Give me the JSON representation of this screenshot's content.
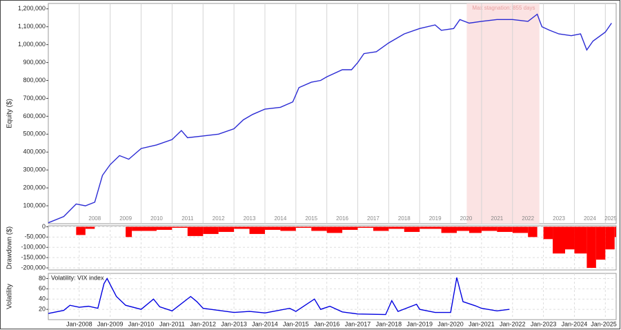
{
  "chart_data": [
    {
      "type": "line",
      "y_label": "Equity ($)",
      "color": "#2a2ad4",
      "grid": true,
      "xlim": [
        2007,
        2025.35
      ],
      "ylim": [
        0,
        1230000
      ],
      "xticks": [
        {
          "value": 2008,
          "label": "2008"
        },
        {
          "value": 2009,
          "label": "2009"
        },
        {
          "value": 2010,
          "label": "2010"
        },
        {
          "value": 2011,
          "label": "2011"
        },
        {
          "value": 2012,
          "label": "2012"
        },
        {
          "value": 2013,
          "label": "2013"
        },
        {
          "value": 2014,
          "label": "2014"
        },
        {
          "value": 2015,
          "label": "2015"
        },
        {
          "value": 2016,
          "label": "2016"
        },
        {
          "value": 2017,
          "label": "2017"
        },
        {
          "value": 2018,
          "label": "2018"
        },
        {
          "value": 2019,
          "label": "2019"
        },
        {
          "value": 2020,
          "label": "2020"
        },
        {
          "value": 2021,
          "label": "2021"
        },
        {
          "value": 2022,
          "label": "2022"
        },
        {
          "value": 2023,
          "label": "2023"
        },
        {
          "value": 2024,
          "label": "2024"
        },
        {
          "value": 2025,
          "label": "2025"
        }
      ],
      "yticks": [
        {
          "value": 100000,
          "label": "100,000"
        },
        {
          "value": 200000,
          "label": "200,000"
        },
        {
          "value": 300000,
          "label": "300,000"
        },
        {
          "value": 400000,
          "label": "400,000"
        },
        {
          "value": 500000,
          "label": "500,000"
        },
        {
          "value": 600000,
          "label": "600,000"
        },
        {
          "value": 700000,
          "label": "700,000"
        },
        {
          "value": 800000,
          "label": "800,000"
        },
        {
          "value": 900000,
          "label": "900,000"
        },
        {
          "value": 1000000,
          "label": "1,000,000"
        },
        {
          "value": 1100000,
          "label": "1,100,000"
        },
        {
          "value": 1200000,
          "label": "1,200,000"
        }
      ],
      "annotation": {
        "label": "Max stagnation: 855 days",
        "span": [
          2020.52,
          2022.87
        ],
        "color": "#fbe3e3"
      },
      "x": [
        2007.0,
        2007.5,
        2007.9,
        2008.2,
        2008.5,
        2008.75,
        2009.0,
        2009.3,
        2009.6,
        2010.0,
        2010.5,
        2011.0,
        2011.3,
        2011.5,
        2012.0,
        2012.5,
        2013.0,
        2013.3,
        2013.6,
        2014.0,
        2014.5,
        2014.9,
        2015.1,
        2015.5,
        2015.8,
        2016.0,
        2016.5,
        2016.8,
        2017.0,
        2017.2,
        2017.6,
        2018.0,
        2018.5,
        2019.0,
        2019.5,
        2019.7,
        2020.1,
        2020.3,
        2020.6,
        2021.0,
        2021.5,
        2022.0,
        2022.5,
        2022.8,
        2022.95,
        2023.2,
        2023.5,
        2023.9,
        2024.2,
        2024.4,
        2024.6,
        2025.0,
        2025.2
      ],
      "values": [
        5000,
        40000,
        110000,
        100000,
        120000,
        270000,
        330000,
        380000,
        360000,
        420000,
        440000,
        470000,
        520000,
        480000,
        490000,
        500000,
        530000,
        580000,
        610000,
        640000,
        650000,
        680000,
        760000,
        790000,
        800000,
        820000,
        860000,
        860000,
        900000,
        950000,
        960000,
        1010000,
        1060000,
        1090000,
        1110000,
        1080000,
        1090000,
        1140000,
        1120000,
        1130000,
        1140000,
        1140000,
        1130000,
        1170000,
        1100000,
        1080000,
        1060000,
        1050000,
        1060000,
        970000,
        1020000,
        1070000,
        1120000
      ]
    },
    {
      "type": "area",
      "y_label": "Drawdown ($)",
      "color": "#ff0000",
      "grid": true,
      "xlim": [
        2007,
        2025.35
      ],
      "ylim": [
        -210000,
        5000
      ],
      "yticks": [
        0,
        {
          "value": -50000,
          "label": "-50,000"
        },
        {
          "value": -100000,
          "label": "-100,000"
        },
        {
          "value": -150000,
          "label": "-150,000"
        },
        {
          "value": -200000,
          "label": "-200,000"
        }
      ],
      "x": [
        2007.0,
        2007.9,
        2008.2,
        2008.5,
        2009.3,
        2009.5,
        2009.7,
        2010.5,
        2011.0,
        2011.5,
        2012.0,
        2012.5,
        2013.0,
        2013.5,
        2014.0,
        2014.5,
        2015.0,
        2015.5,
        2016.0,
        2016.5,
        2017.0,
        2017.5,
        2018.0,
        2018.5,
        2019.0,
        2019.7,
        2020.2,
        2020.6,
        2021.0,
        2021.5,
        2022.0,
        2022.5,
        2022.8,
        2023.0,
        2023.3,
        2023.7,
        2024.0,
        2024.4,
        2024.7,
        2025.0,
        2025.3
      ],
      "values": [
        0,
        -40000,
        -10000,
        0,
        0,
        -50000,
        -20000,
        -15000,
        -5000,
        -45000,
        -35000,
        -25000,
        -10000,
        -35000,
        -15000,
        -20000,
        -5000,
        -20000,
        -30000,
        -15000,
        -5000,
        -20000,
        -10000,
        -25000,
        -10000,
        -30000,
        -20000,
        -30000,
        -20000,
        -25000,
        -30000,
        -50000,
        0,
        -60000,
        -130000,
        -110000,
        -130000,
        -200000,
        -160000,
        -110000,
        -50000
      ]
    },
    {
      "type": "line",
      "title": "Volatility: VIX index",
      "y_label": "Volatility",
      "color": "#0000e0",
      "grid": true,
      "xlim": [
        2007,
        2025.35
      ],
      "ylim": [
        0,
        90
      ],
      "yticks": [
        20,
        40,
        60,
        80
      ],
      "xticks": [
        {
          "value": 2008,
          "label": "Jan-2008"
        },
        {
          "value": 2009,
          "label": "Jan-2009"
        },
        {
          "value": 2010,
          "label": "Jan-2010"
        },
        {
          "value": 2011,
          "label": "Jan-2011"
        },
        {
          "value": 2012,
          "label": "Jan-2012"
        },
        {
          "value": 2013,
          "label": "Jan-2013"
        },
        {
          "value": 2014,
          "label": "Jan-2014"
        },
        {
          "value": 2015,
          "label": "Jan-2015"
        },
        {
          "value": 2016,
          "label": "Jan-2016"
        },
        {
          "value": 2017,
          "label": "Jan-2017"
        },
        {
          "value": 2018,
          "label": "Jan-2018"
        },
        {
          "value": 2019,
          "label": "Jan-2019"
        },
        {
          "value": 2020,
          "label": "Jan-2020"
        },
        {
          "value": 2021,
          "label": "Jan-2021"
        },
        {
          "value": 2022,
          "label": "Jan-2022"
        },
        {
          "value": 2023,
          "label": "Jan-2023"
        },
        {
          "value": 2024,
          "label": "Jan-2024"
        },
        {
          "value": 2025,
          "label": "Jan-2025"
        }
      ],
      "x": [
        2007.0,
        2007.5,
        2007.7,
        2008.0,
        2008.3,
        2008.6,
        2008.8,
        2008.9,
        2009.2,
        2009.5,
        2010.0,
        2010.4,
        2010.6,
        2011.0,
        2011.6,
        2011.8,
        2012.0,
        2012.5,
        2013.0,
        2013.5,
        2014.0,
        2014.8,
        2015.0,
        2015.6,
        2015.8,
        2016.1,
        2016.5,
        2017.0,
        2017.9,
        2018.1,
        2018.3,
        2018.9,
        2019.0,
        2019.5,
        2020.0,
        2020.2,
        2020.4,
        2020.8,
        2021.0,
        2021.5,
        2021.9
      ],
      "values": [
        12,
        18,
        28,
        24,
        26,
        22,
        70,
        80,
        45,
        28,
        20,
        40,
        25,
        17,
        45,
        35,
        22,
        18,
        14,
        16,
        13,
        22,
        16,
        40,
        20,
        26,
        15,
        11,
        10,
        37,
        16,
        30,
        20,
        14,
        14,
        82,
        35,
        27,
        22,
        17,
        20
      ]
    }
  ]
}
